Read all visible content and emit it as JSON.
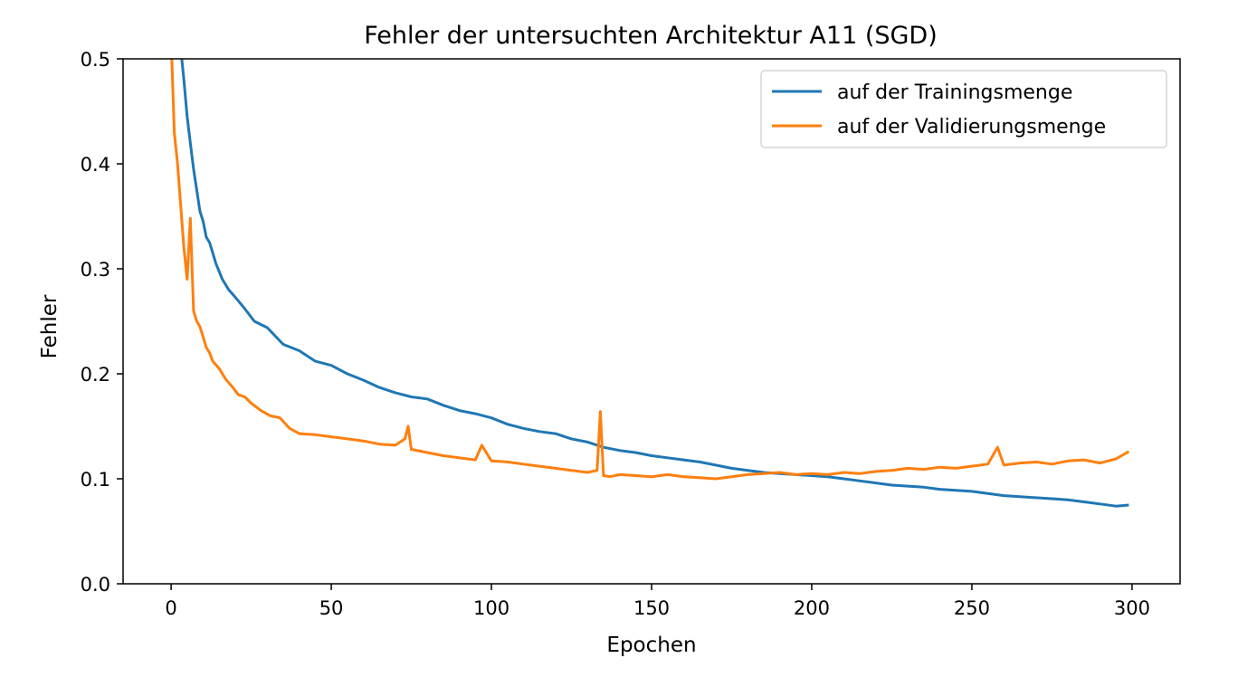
{
  "chart_data": {
    "type": "line",
    "title": "Fehler der untersuchten Architektur A11 (SGD)",
    "xlabel": "Epochen",
    "ylabel": "Fehler",
    "xlim": [
      -15,
      315
    ],
    "ylim": [
      0.0,
      0.5
    ],
    "xticks": [
      "0",
      "50",
      "100",
      "150",
      "200",
      "250",
      "300"
    ],
    "yticks": [
      "0.0",
      "0.1",
      "0.2",
      "0.3",
      "0.4",
      "0.5"
    ],
    "grid": false,
    "legend": "top-right",
    "series": [
      {
        "name": "auf der Trainingsmenge",
        "color": "#1f77b4",
        "x": [
          0,
          1,
          2,
          3,
          4,
          5,
          6,
          7,
          8,
          9,
          10,
          11,
          12,
          14,
          16,
          18,
          20,
          23,
          26,
          30,
          35,
          40,
          45,
          50,
          55,
          60,
          65,
          70,
          75,
          80,
          85,
          90,
          95,
          100,
          105,
          110,
          115,
          120,
          125,
          130,
          135,
          140,
          145,
          150,
          155,
          160,
          165,
          170,
          175,
          180,
          185,
          190,
          195,
          200,
          205,
          210,
          215,
          220,
          225,
          230,
          235,
          240,
          245,
          250,
          255,
          260,
          265,
          270,
          275,
          280,
          285,
          290,
          295,
          299
        ],
        "y": [
          0.56,
          0.55,
          0.53,
          0.51,
          0.48,
          0.445,
          0.42,
          0.395,
          0.375,
          0.355,
          0.345,
          0.33,
          0.325,
          0.305,
          0.29,
          0.28,
          0.273,
          0.262,
          0.25,
          0.244,
          0.228,
          0.222,
          0.212,
          0.208,
          0.2,
          0.194,
          0.187,
          0.182,
          0.178,
          0.176,
          0.17,
          0.165,
          0.162,
          0.158,
          0.152,
          0.148,
          0.145,
          0.143,
          0.138,
          0.135,
          0.13,
          0.127,
          0.125,
          0.122,
          0.12,
          0.118,
          0.116,
          0.113,
          0.11,
          0.108,
          0.106,
          0.105,
          0.104,
          0.103,
          0.102,
          0.1,
          0.098,
          0.096,
          0.094,
          0.093,
          0.092,
          0.09,
          0.089,
          0.088,
          0.086,
          0.084,
          0.083,
          0.082,
          0.081,
          0.08,
          0.078,
          0.076,
          0.074,
          0.075
        ]
      },
      {
        "name": "auf der Validierungsmenge",
        "color": "#ff7f0e",
        "x": [
          0,
          1,
          2,
          3,
          4,
          5,
          6,
          7,
          8,
          9,
          10,
          11,
          12,
          13,
          15,
          17,
          19,
          21,
          23,
          25,
          28,
          31,
          34,
          37,
          40,
          45,
          50,
          55,
          60,
          65,
          70,
          73,
          74,
          75,
          80,
          85,
          90,
          95,
          97,
          100,
          105,
          110,
          115,
          120,
          125,
          130,
          133,
          134,
          135,
          137,
          140,
          145,
          150,
          155,
          160,
          165,
          170,
          175,
          180,
          185,
          190,
          195,
          200,
          205,
          210,
          215,
          220,
          225,
          230,
          235,
          240,
          245,
          250,
          255,
          258,
          260,
          265,
          270,
          275,
          280,
          285,
          290,
          295,
          299
        ],
        "y": [
          0.52,
          0.43,
          0.4,
          0.36,
          0.32,
          0.29,
          0.348,
          0.26,
          0.25,
          0.245,
          0.235,
          0.225,
          0.22,
          0.212,
          0.205,
          0.195,
          0.188,
          0.18,
          0.178,
          0.172,
          0.165,
          0.16,
          0.158,
          0.148,
          0.143,
          0.142,
          0.14,
          0.138,
          0.136,
          0.133,
          0.132,
          0.138,
          0.15,
          0.128,
          0.125,
          0.122,
          0.12,
          0.118,
          0.132,
          0.117,
          0.116,
          0.114,
          0.112,
          0.11,
          0.108,
          0.106,
          0.108,
          0.164,
          0.103,
          0.102,
          0.104,
          0.103,
          0.102,
          0.104,
          0.102,
          0.101,
          0.1,
          0.102,
          0.104,
          0.105,
          0.106,
          0.104,
          0.105,
          0.104,
          0.106,
          0.105,
          0.107,
          0.108,
          0.11,
          0.109,
          0.111,
          0.11,
          0.112,
          0.114,
          0.13,
          0.113,
          0.115,
          0.116,
          0.114,
          0.117,
          0.118,
          0.115,
          0.119,
          0.126
        ]
      }
    ]
  }
}
